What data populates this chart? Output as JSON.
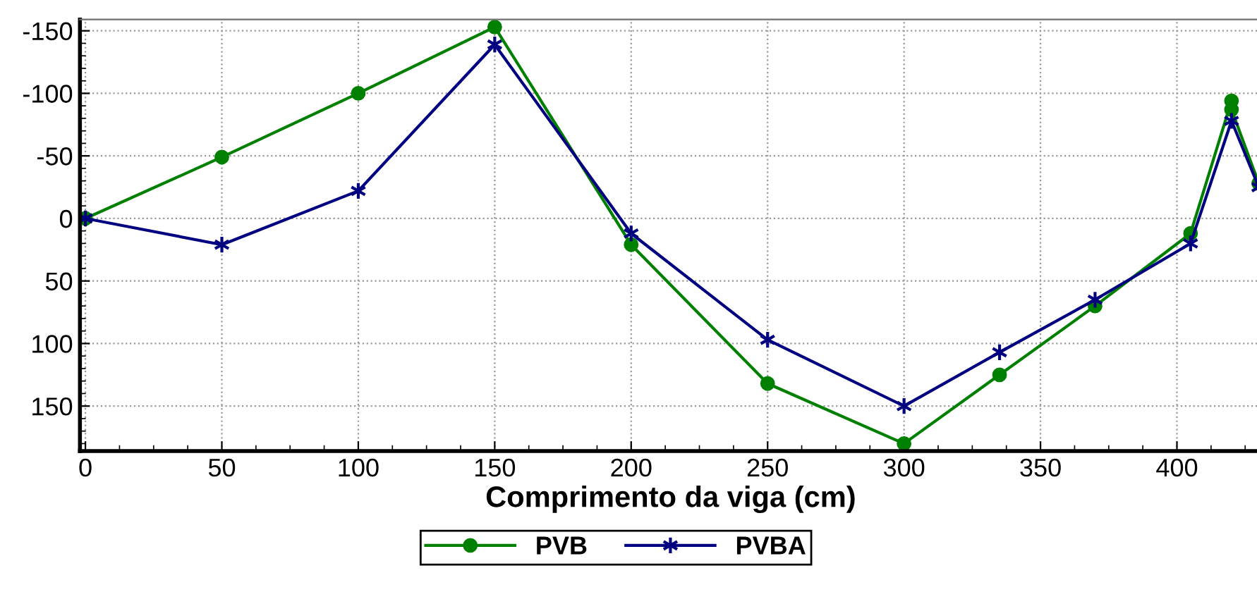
{
  "chart_data": {
    "type": "line",
    "xlabel": "Comprimento da viga (cm)",
    "xlim": [
      -2,
      431
    ],
    "xticks": [
      0,
      50,
      100,
      150,
      200,
      250,
      300,
      350,
      400
    ],
    "ylim": [
      186,
      -159
    ],
    "yticks": [
      -150,
      -100,
      -50,
      0,
      50,
      100,
      150
    ],
    "grid": true,
    "legend": "bottom",
    "line_style": "solid",
    "series": [
      {
        "name": "PVB",
        "color": "#008000",
        "marker": "circle",
        "x": [
          0,
          50,
          100,
          150,
          200,
          250,
          300,
          335,
          370,
          405,
          420,
          420,
          430
        ],
        "values": [
          0,
          -49,
          -100,
          -153,
          21,
          132,
          180,
          125,
          70,
          12,
          -94,
          -87,
          -28
        ]
      },
      {
        "name": "PVBA",
        "color": "#000080",
        "marker": "cross",
        "x": [
          0,
          50,
          100,
          150,
          200,
          250,
          300,
          335,
          370,
          405,
          420,
          430
        ],
        "values": [
          0,
          21,
          -22,
          -139,
          12,
          97,
          150,
          107,
          65,
          20,
          -78,
          -25
        ]
      }
    ]
  }
}
